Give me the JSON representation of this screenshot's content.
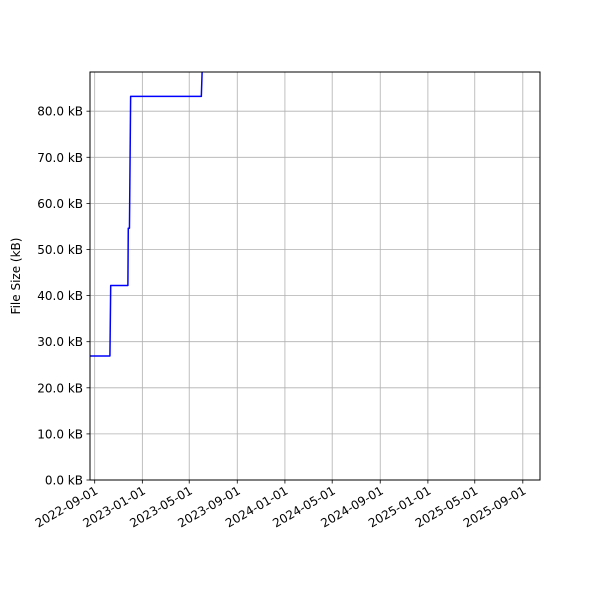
{
  "chart_data": {
    "type": "line",
    "title": "",
    "xlabel": "",
    "ylabel": "File Size (kB)",
    "x_type": "date",
    "xlim": [
      "2022-08-20",
      "2025-10-15"
    ],
    "ylim": [
      0,
      88500
    ],
    "x_ticks": [
      {
        "date": "2022-09-01",
        "label": "2022-09-01"
      },
      {
        "date": "2023-01-01",
        "label": "2023-01-01"
      },
      {
        "date": "2023-05-01",
        "label": "2023-05-01"
      },
      {
        "date": "2023-09-01",
        "label": "2023-09-01"
      },
      {
        "date": "2024-01-01",
        "label": "2024-01-01"
      },
      {
        "date": "2024-05-01",
        "label": "2024-05-01"
      },
      {
        "date": "2024-09-01",
        "label": "2024-09-01"
      },
      {
        "date": "2025-01-01",
        "label": "2025-01-01"
      },
      {
        "date": "2025-05-01",
        "label": "2025-05-01"
      },
      {
        "date": "2025-09-01",
        "label": "2025-09-01"
      }
    ],
    "y_ticks": [
      {
        "value": 0,
        "label": "0.0 kB"
      },
      {
        "value": 10000,
        "label": "10.0 kB"
      },
      {
        "value": 20000,
        "label": "20.0 kB"
      },
      {
        "value": 30000,
        "label": "30.0 kB"
      },
      {
        "value": 40000,
        "label": "40.0 kB"
      },
      {
        "value": 50000,
        "label": "50.0 kB"
      },
      {
        "value": 60000,
        "label": "60.0 kB"
      },
      {
        "value": 70000,
        "label": "70.0 kB"
      },
      {
        "value": 80000,
        "label": "80.0 kB"
      }
    ],
    "grid": true,
    "series": [
      {
        "color": "#0000ff",
        "points": [
          {
            "x": "2022-08-20",
            "y": 26900
          },
          {
            "x": "2022-10-10",
            "y": 26900
          },
          {
            "x": "2022-10-12",
            "y": 42200
          },
          {
            "x": "2022-11-25",
            "y": 42200
          },
          {
            "x": "2022-11-26",
            "y": 54600
          },
          {
            "x": "2022-11-29",
            "y": 54600
          },
          {
            "x": "2022-12-02",
            "y": 83200
          },
          {
            "x": "2023-06-01",
            "y": 83200
          },
          {
            "x": "2023-06-03",
            "y": 88500
          }
        ]
      }
    ]
  }
}
